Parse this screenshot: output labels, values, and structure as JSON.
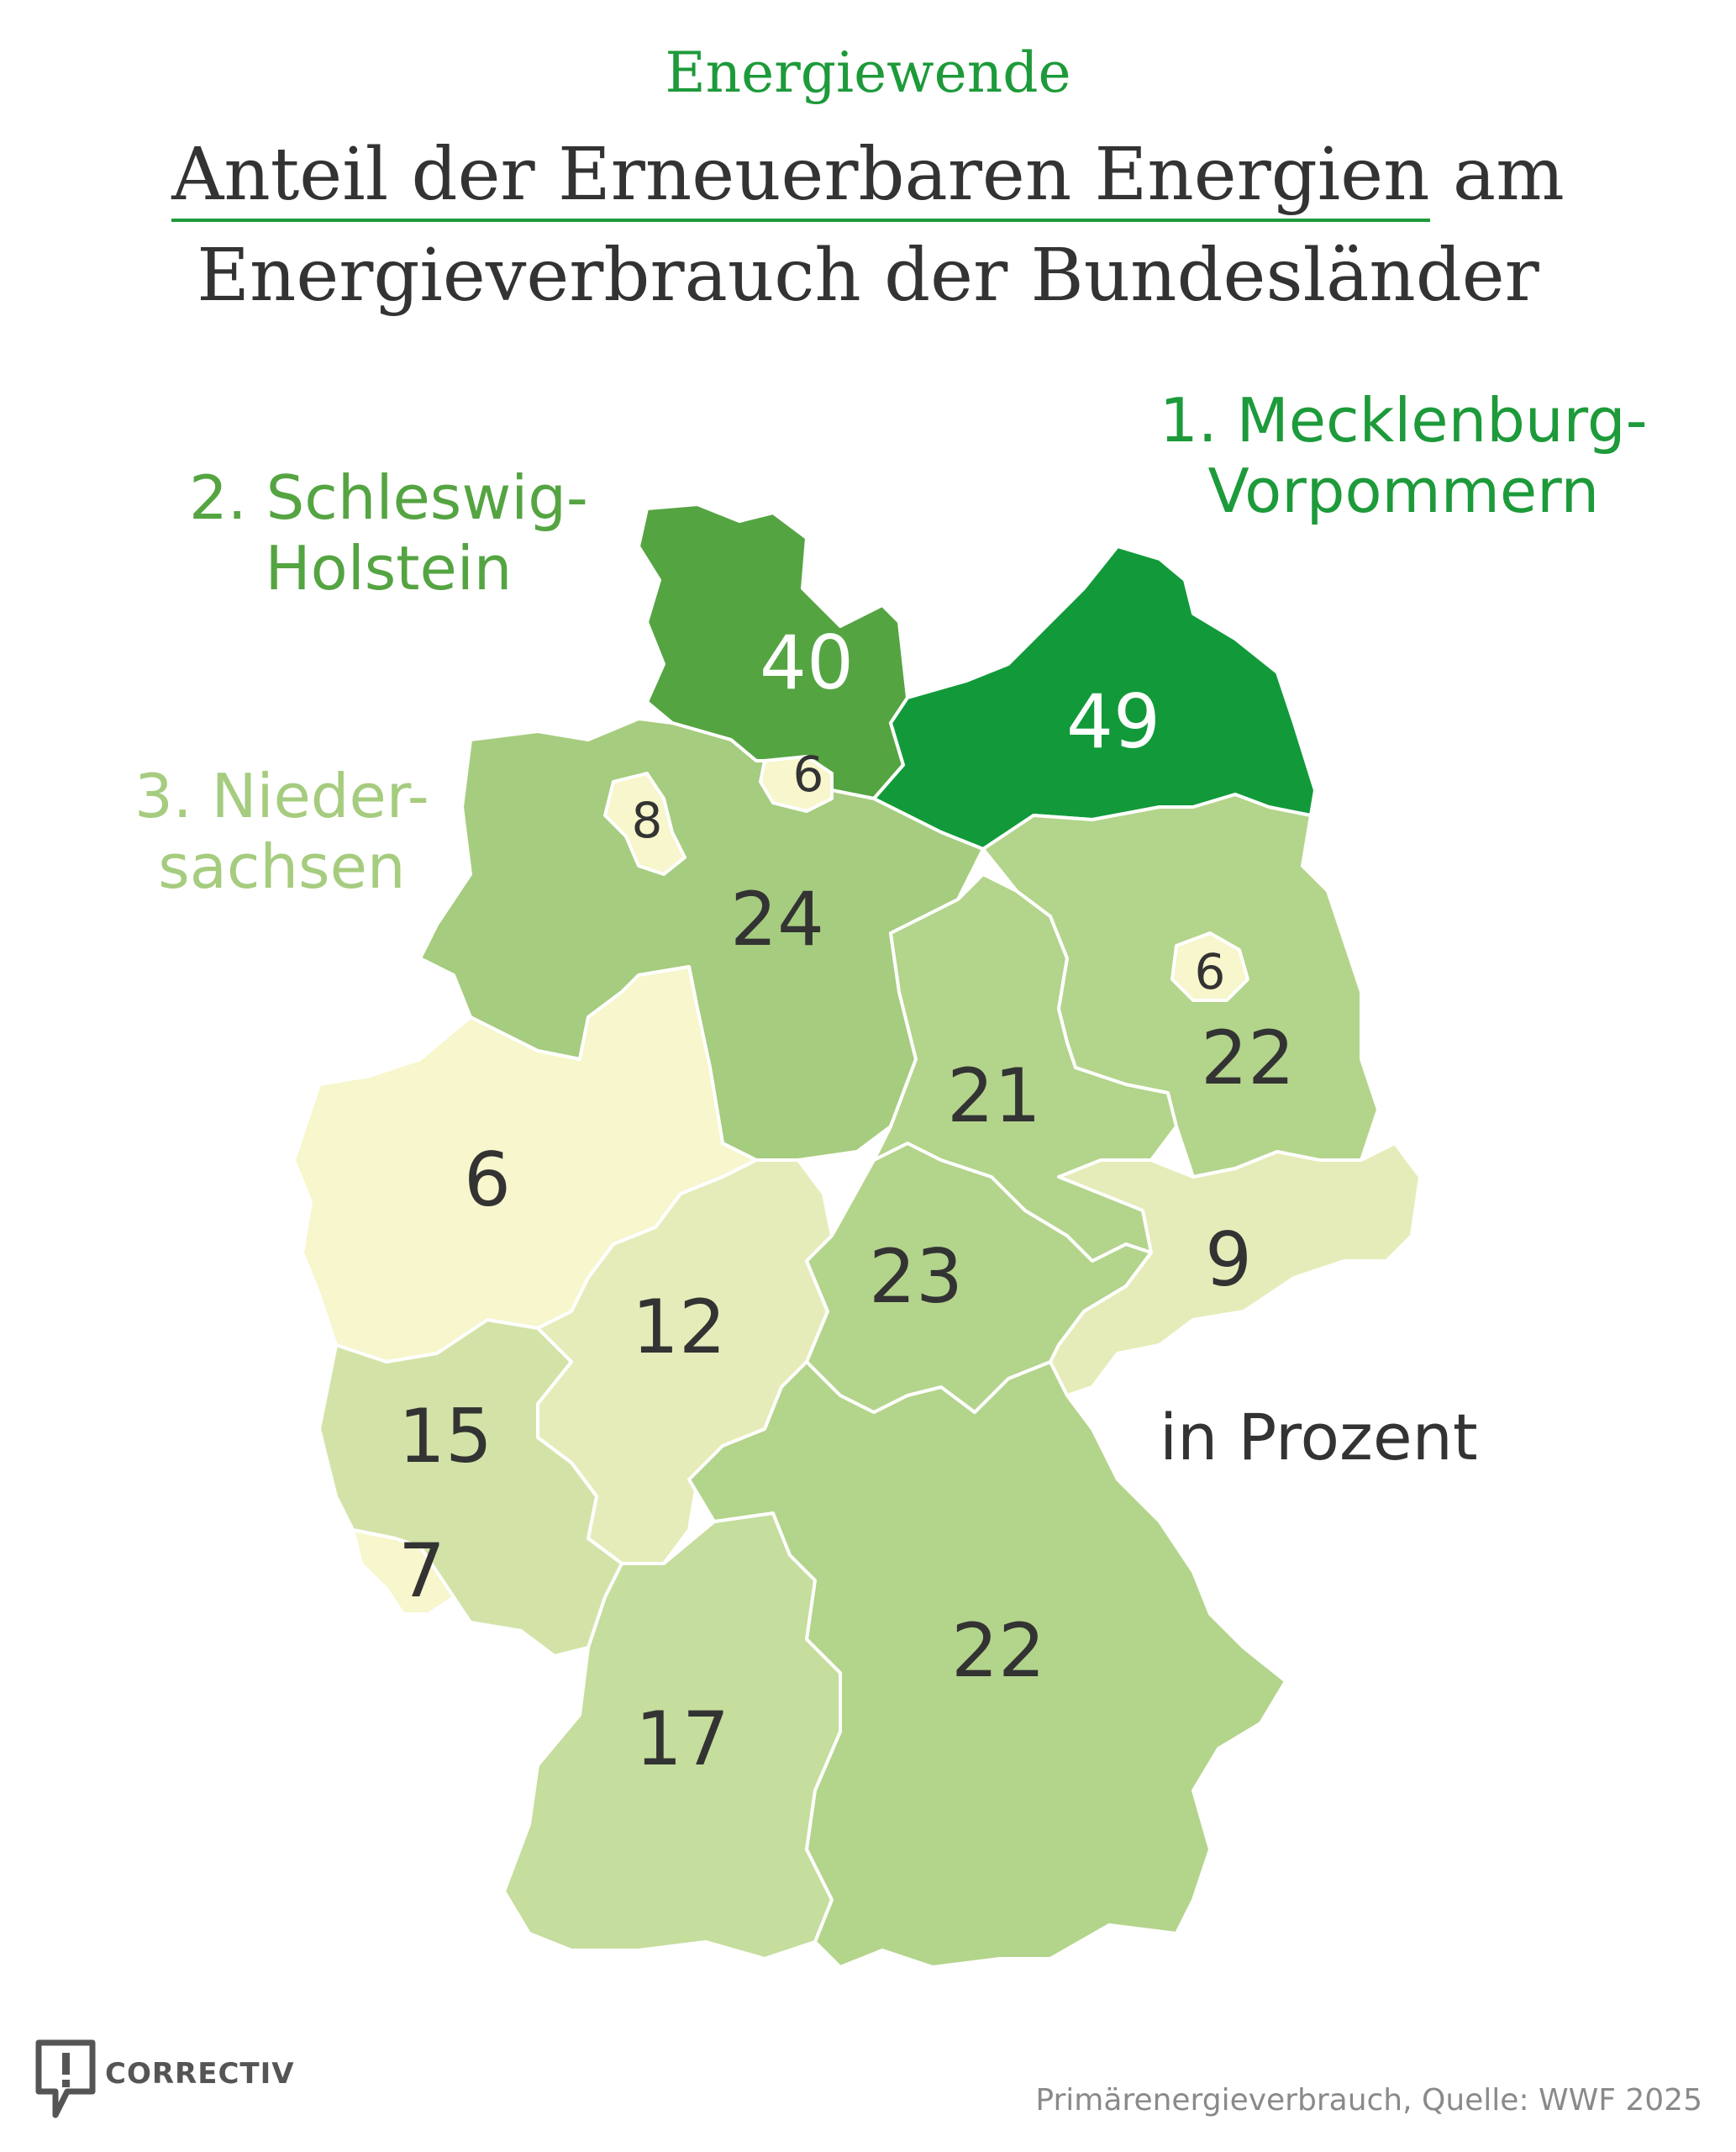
{
  "header": {
    "kicker": "Energiewende",
    "title_line1_underlined": "Anteil der Erneuerbaren Energien",
    "title_line1_rest": " am",
    "title_line2": "Energieverbrauch der Bundesländer"
  },
  "callouts": {
    "rank1_line1": "1. Mecklenburg-",
    "rank1_line2": "Vorpommern",
    "rank2_line1": "2. Schleswig-",
    "rank2_line2": "Holstein",
    "rank3_line1": "3. Nieder-",
    "rank3_line2": "sachsen"
  },
  "unit_note": "in Prozent",
  "source": "Primärenergieverbrauch, Quelle: WWF 2025",
  "logo": {
    "text": "CORRECTIV",
    "icon": "speech-bubble-exclamation-icon"
  },
  "colors": {
    "accent": "#1d9a3a",
    "scale": [
      "#f7f6cc",
      "#e6ecb9",
      "#d3e3a8",
      "#c5dd9d",
      "#b3d48b",
      "#a6cc7f",
      "#55a442",
      "#129a3a"
    ],
    "callout_rank1": "#1d9a3a",
    "callout_rank2": "#55a442",
    "callout_rank3": "#a6cc7f"
  },
  "map_data": {
    "type": "choropleth",
    "regions": [
      {
        "name": "Mecklenburg-Vorpommern",
        "value": 49
      },
      {
        "name": "Schleswig-Holstein",
        "value": 40
      },
      {
        "name": "Niedersachsen",
        "value": 24
      },
      {
        "name": "Thüringen",
        "value": 23
      },
      {
        "name": "Brandenburg",
        "value": 22
      },
      {
        "name": "Bayern",
        "value": 22
      },
      {
        "name": "Sachsen-Anhalt",
        "value": 21
      },
      {
        "name": "Baden-Württemberg",
        "value": 17
      },
      {
        "name": "Rheinland-Pfalz",
        "value": 15
      },
      {
        "name": "Hessen",
        "value": 12
      },
      {
        "name": "Sachsen",
        "value": 9
      },
      {
        "name": "Bremen",
        "value": 8
      },
      {
        "name": "Saarland",
        "value": 7
      },
      {
        "name": "Nordrhein-Westfalen",
        "value": 6
      },
      {
        "name": "Hamburg",
        "value": 6
      },
      {
        "name": "Berlin",
        "value": 6
      }
    ]
  }
}
